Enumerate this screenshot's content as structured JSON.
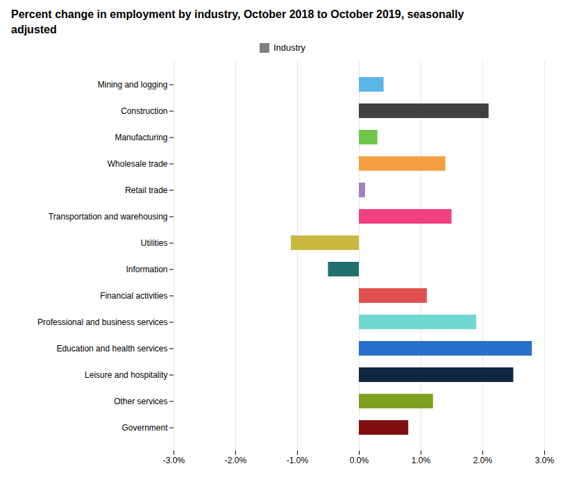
{
  "chart_data": {
    "type": "bar",
    "orientation": "horizontal",
    "title": "Percent change in employment by industry, October 2018 to October 2019, seasonally\nadjusted",
    "categories": [
      "Mining and logging",
      "Construction",
      "Manufacturing",
      "Wholesale trade",
      "Retail trade",
      "Transportation and warehousing",
      "Utilities",
      "Information",
      "Financial activities",
      "Professional and business services",
      "Education and health services",
      "Leisure and hospitality",
      "Other services",
      "Government"
    ],
    "series": [
      {
        "name": "Industry",
        "color": "#808080",
        "values": [
          0.4,
          2.1,
          0.3,
          1.4,
          0.1,
          1.5,
          -1.1,
          -0.5,
          1.1,
          1.9,
          2.8,
          2.5,
          1.2,
          0.8
        ],
        "colors": [
          "#5ab4e5",
          "#404040",
          "#70c44c",
          "#f5a040",
          "#a080c0",
          "#f04080",
          "#c8b840",
          "#207070",
          "#e05050",
          "#70d8d0",
          "#2870c8",
          "#102840",
          "#80a020",
          "#801010"
        ]
      }
    ],
    "xlim": [
      -3.0,
      3.0
    ],
    "xticks": [
      {
        "value": -3.0,
        "label": "-3.0%"
      },
      {
        "value": -2.0,
        "label": "-2.0%"
      },
      {
        "value": -1.0,
        "label": "-1.0%"
      },
      {
        "value": 0.0,
        "label": "0.0%"
      },
      {
        "value": 1.0,
        "label": "1.0%"
      },
      {
        "value": 2.0,
        "label": "2.0%"
      },
      {
        "value": 3.0,
        "label": "3.0%"
      }
    ],
    "grid": true,
    "legend": "top"
  }
}
